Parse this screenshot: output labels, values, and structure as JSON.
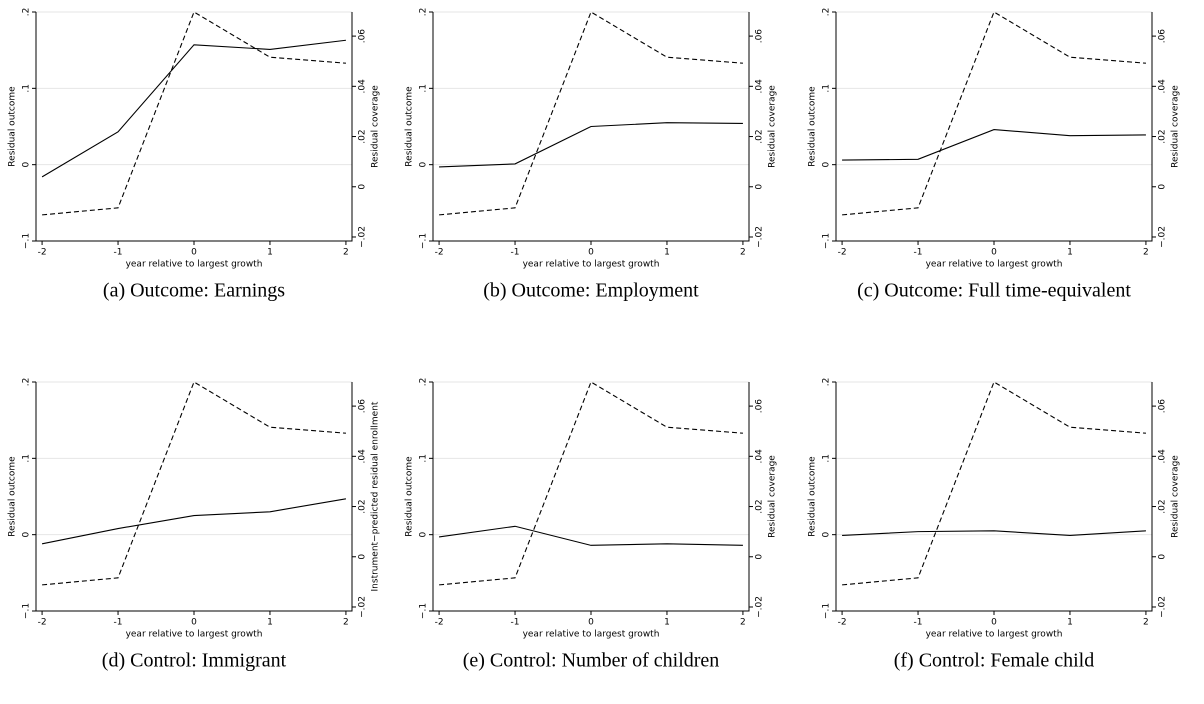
{
  "chart_data": [
    {
      "type": "line",
      "caption": "(a) Outcome: Earnings",
      "xlabel": "year relative to largest growth",
      "ylabel": "Residual outcome",
      "y2label": "Residual coverage",
      "x": [
        -2,
        -1,
        0,
        1,
        2
      ],
      "xlim": [
        -2.08,
        2.08
      ],
      "xticks": [
        -2,
        -1,
        0,
        1,
        2
      ],
      "ylim": [
        -0.1,
        0.2
      ],
      "yticks": [
        {
          "value": -0.1,
          "label": "−.1"
        },
        0,
        {
          "value": 0.1,
          "label": ".1"
        },
        {
          "value": 0.2,
          "label": ".2"
        }
      ],
      "y2lim": [
        -0.0216,
        0.0696
      ],
      "y2ticks": [
        {
          "value": -0.02,
          "label": "−.02"
        },
        0,
        {
          "value": 0.02,
          "label": ".02"
        },
        {
          "value": 0.04,
          "label": ".04"
        },
        {
          "value": 0.06,
          "label": ".06"
        }
      ],
      "grid": true,
      "series": [
        {
          "color": "#000000",
          "style": "solid",
          "values": [
            -0.016,
            0.043,
            0.157,
            0.151,
            0.163
          ]
        },
        {
          "color": "#000000",
          "style": "dashed",
          "axis": "y2",
          "values": [
            -0.0112,
            -0.0084,
            0.0696,
            0.0516,
            0.0492
          ]
        }
      ]
    },
    {
      "type": "line",
      "caption": "(b) Outcome: Employment",
      "xlabel": "year relative to largest growth",
      "ylabel": "Residual outcome",
      "y2label": "Residual coverage",
      "x": [
        -2,
        -1,
        0,
        1,
        2
      ],
      "xlim": [
        -2.08,
        2.08
      ],
      "xticks": [
        -2,
        -1,
        0,
        1,
        2
      ],
      "ylim": [
        -0.1,
        0.2
      ],
      "yticks": [
        {
          "value": -0.1,
          "label": "−.1"
        },
        0,
        {
          "value": 0.1,
          "label": ".1"
        },
        {
          "value": 0.2,
          "label": ".2"
        }
      ],
      "y2lim": [
        -0.0216,
        0.0696
      ],
      "y2ticks": [
        {
          "value": -0.02,
          "label": "−.02"
        },
        0,
        {
          "value": 0.02,
          "label": ".02"
        },
        {
          "value": 0.04,
          "label": ".04"
        },
        {
          "value": 0.06,
          "label": ".06"
        }
      ],
      "grid": true,
      "series": [
        {
          "color": "#000000",
          "style": "solid",
          "values": [
            -0.003,
            0.001,
            0.05,
            0.055,
            0.054
          ]
        },
        {
          "color": "#000000",
          "style": "dashed",
          "axis": "y2",
          "values": [
            -0.0112,
            -0.0084,
            0.0696,
            0.0516,
            0.0492
          ]
        }
      ]
    },
    {
      "type": "line",
      "caption": "(c) Outcome: Full time-equivalent",
      "xlabel": "year relative to largest growth",
      "ylabel": "Residual outcome",
      "y2label": "Residual coverage",
      "x": [
        -2,
        -1,
        0,
        1,
        2
      ],
      "xlim": [
        -2.08,
        2.08
      ],
      "xticks": [
        -2,
        -1,
        0,
        1,
        2
      ],
      "ylim": [
        -0.1,
        0.2
      ],
      "yticks": [
        {
          "value": -0.1,
          "label": "−.1"
        },
        0,
        {
          "value": 0.1,
          "label": ".1"
        },
        {
          "value": 0.2,
          "label": ".2"
        }
      ],
      "y2lim": [
        -0.0216,
        0.0696
      ],
      "y2ticks": [
        {
          "value": -0.02,
          "label": "−.02"
        },
        0,
        {
          "value": 0.02,
          "label": ".02"
        },
        {
          "value": 0.04,
          "label": ".04"
        },
        {
          "value": 0.06,
          "label": ".06"
        }
      ],
      "grid": true,
      "series": [
        {
          "color": "#000000",
          "style": "solid",
          "values": [
            0.006,
            0.007,
            0.046,
            0.038,
            0.039
          ]
        },
        {
          "color": "#000000",
          "style": "dashed",
          "axis": "y2",
          "values": [
            -0.0112,
            -0.0084,
            0.0696,
            0.0516,
            0.0492
          ]
        }
      ]
    },
    {
      "type": "line",
      "caption": "(d) Control: Immigrant",
      "xlabel": "year relative to largest growth",
      "ylabel": "Residual outcome",
      "y2label": "Instrument−predicted residual enrollment",
      "x": [
        -2,
        -1,
        0,
        1,
        2
      ],
      "xlim": [
        -2.08,
        2.08
      ],
      "xticks": [
        -2,
        -1,
        0,
        1,
        2
      ],
      "ylim": [
        -0.1,
        0.2
      ],
      "yticks": [
        {
          "value": -0.1,
          "label": "−.1"
        },
        0,
        {
          "value": 0.1,
          "label": ".1"
        },
        {
          "value": 0.2,
          "label": ".2"
        }
      ],
      "y2lim": [
        -0.0216,
        0.0696
      ],
      "y2ticks": [
        {
          "value": -0.02,
          "label": "−.02"
        },
        0,
        {
          "value": 0.02,
          "label": ".02"
        },
        {
          "value": 0.04,
          "label": ".04"
        },
        {
          "value": 0.06,
          "label": ".06"
        }
      ],
      "grid": true,
      "series": [
        {
          "color": "#000000",
          "style": "solid",
          "values": [
            -0.012,
            0.008,
            0.025,
            0.03,
            0.047
          ]
        },
        {
          "color": "#000000",
          "style": "dashed",
          "axis": "y2",
          "values": [
            -0.0112,
            -0.0084,
            0.0696,
            0.0516,
            0.0492
          ]
        }
      ]
    },
    {
      "type": "line",
      "caption": "(e) Control: Number of children",
      "xlabel": "year relative to largest growth",
      "ylabel": "Residual outcome",
      "y2label": "Residual coverage",
      "x": [
        -2,
        -1,
        0,
        1,
        2
      ],
      "xlim": [
        -2.08,
        2.08
      ],
      "xticks": [
        -2,
        -1,
        0,
        1,
        2
      ],
      "ylim": [
        -0.1,
        0.2
      ],
      "yticks": [
        {
          "value": -0.1,
          "label": "−.1"
        },
        0,
        {
          "value": 0.1,
          "label": ".1"
        },
        {
          "value": 0.2,
          "label": ".2"
        }
      ],
      "y2lim": [
        -0.0216,
        0.0696
      ],
      "y2ticks": [
        {
          "value": -0.02,
          "label": "−.02"
        },
        0,
        {
          "value": 0.02,
          "label": ".02"
        },
        {
          "value": 0.04,
          "label": ".04"
        },
        {
          "value": 0.06,
          "label": ".06"
        }
      ],
      "grid": true,
      "series": [
        {
          "color": "#000000",
          "style": "solid",
          "values": [
            -0.003,
            0.011,
            -0.014,
            -0.012,
            -0.014
          ]
        },
        {
          "color": "#000000",
          "style": "dashed",
          "axis": "y2",
          "values": [
            -0.0112,
            -0.0084,
            0.0696,
            0.0516,
            0.0492
          ]
        }
      ]
    },
    {
      "type": "line",
      "caption": "(f) Control: Female child",
      "xlabel": "year relative to largest growth",
      "ylabel": "Residual outcome",
      "y2label": "Residual coverage",
      "x": [
        -2,
        -1,
        0,
        1,
        2
      ],
      "xlim": [
        -2.08,
        2.08
      ],
      "xticks": [
        -2,
        -1,
        0,
        1,
        2
      ],
      "ylim": [
        -0.1,
        0.2
      ],
      "yticks": [
        {
          "value": -0.1,
          "label": "−.1"
        },
        0,
        {
          "value": 0.1,
          "label": ".1"
        },
        {
          "value": 0.2,
          "label": ".2"
        }
      ],
      "y2lim": [
        -0.0216,
        0.0696
      ],
      "y2ticks": [
        {
          "value": -0.02,
          "label": "−.02"
        },
        0,
        {
          "value": 0.02,
          "label": ".02"
        },
        {
          "value": 0.04,
          "label": ".04"
        },
        {
          "value": 0.06,
          "label": ".06"
        }
      ],
      "grid": true,
      "series": [
        {
          "color": "#000000",
          "style": "solid",
          "values": [
            -0.001,
            0.004,
            0.005,
            -0.001,
            0.005
          ]
        },
        {
          "color": "#000000",
          "style": "dashed",
          "axis": "y2",
          "values": [
            -0.0112,
            -0.0084,
            0.0696,
            0.0516,
            0.0492
          ]
        }
      ]
    }
  ]
}
